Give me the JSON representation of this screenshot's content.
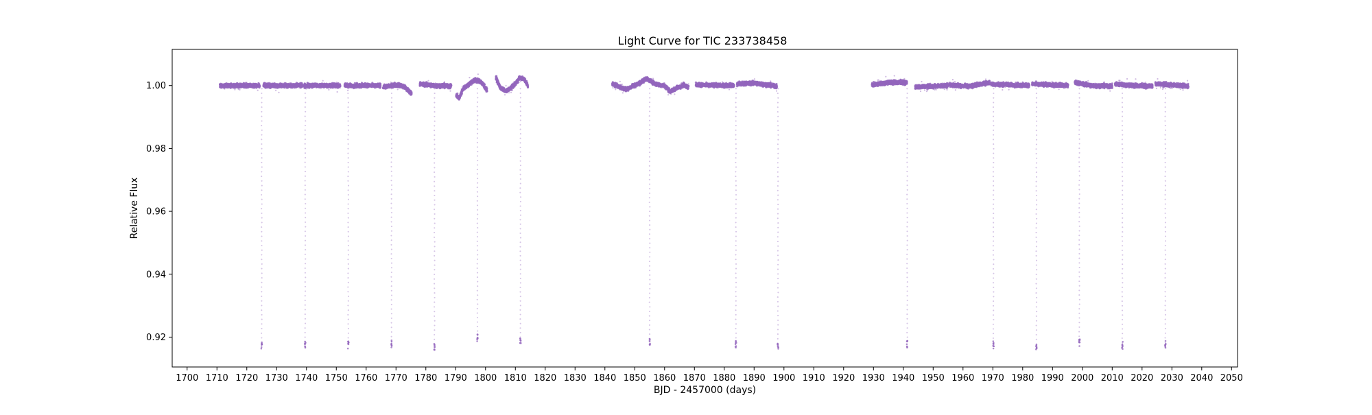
{
  "chart_data": {
    "type": "scatter",
    "title": "Light Curve for TIC 233738458",
    "xlabel": "BJD - 2457000 (days)",
    "ylabel": "Relative Flux",
    "xlim": [
      1695,
      2052
    ],
    "ylim": [
      0.9105,
      1.0115
    ],
    "xticks": [
      1700,
      1710,
      1720,
      1730,
      1740,
      1750,
      1760,
      1770,
      1780,
      1790,
      1800,
      1810,
      1820,
      1830,
      1840,
      1850,
      1860,
      1870,
      1880,
      1890,
      1900,
      1910,
      1920,
      1930,
      1940,
      1950,
      1960,
      1970,
      1980,
      1990,
      2000,
      2010,
      2020,
      2030,
      2040,
      2050
    ],
    "yticks": [
      0.92,
      0.94,
      0.96,
      0.98,
      1.0
    ],
    "ytick_labels": [
      "0.92",
      "0.94",
      "0.96",
      "0.98",
      "1.00"
    ],
    "grid": false,
    "color": "#9467bd",
    "marker_size": "small",
    "series": [
      {
        "segments": [
          {
            "x_start": 1711.0,
            "x_end": 1724.3,
            "baseline": [
              [
                1711.0,
                1.0
              ],
              [
                1724.3,
                1.0
              ]
            ]
          },
          {
            "x_start": 1725.6,
            "x_end": 1738.6,
            "baseline": [
              [
                1725.6,
                1.0
              ],
              [
                1738.6,
                1.0
              ]
            ]
          },
          {
            "x_start": 1739.2,
            "x_end": 1751.3,
            "baseline": [
              [
                1739.2,
                1.0
              ],
              [
                1751.3,
                1.0
              ]
            ]
          },
          {
            "x_start": 1752.8,
            "x_end": 1764.8,
            "baseline": [
              [
                1752.8,
                1.0
              ],
              [
                1764.8,
                1.0
              ]
            ]
          },
          {
            "x_start": 1765.7,
            "x_end": 1775.2,
            "baseline": [
              [
                1765.7,
                0.9995
              ],
              [
                1769.5,
                1.0002
              ],
              [
                1772.5,
                0.9998
              ],
              [
                1775.2,
                0.9975
              ]
            ]
          },
          {
            "x_start": 1778.0,
            "x_end": 1788.5,
            "baseline": [
              [
                1778.0,
                1.0005
              ],
              [
                1783.0,
                1.0
              ],
              [
                1788.5,
                0.9998
              ]
            ]
          },
          {
            "x_start": 1790.2,
            "x_end": 1800.5,
            "baseline": [
              [
                1790.2,
                0.997
              ],
              [
                1791.2,
                0.996
              ],
              [
                1792.5,
                0.999
              ],
              [
                1794.5,
                1.0005
              ],
              [
                1796.5,
                1.0018
              ],
              [
                1798.5,
                1.0012
              ],
              [
                1800.5,
                0.9985
              ]
            ]
          },
          {
            "x_start": 1803.5,
            "x_end": 1814.2,
            "baseline": [
              [
                1803.5,
                1.0025
              ],
              [
                1805.0,
                0.9992
              ],
              [
                1807.0,
                0.9982
              ],
              [
                1809.5,
                1.0
              ],
              [
                1811.5,
                1.0025
              ],
              [
                1813.0,
                1.002
              ],
              [
                1814.2,
                1.0
              ]
            ]
          },
          {
            "x_start": 1842.5,
            "x_end": 1857.0,
            "baseline": [
              [
                1842.5,
                1.0005
              ],
              [
                1847.0,
                0.9988
              ],
              [
                1851.0,
                1.0005
              ],
              [
                1854.0,
                1.0022
              ],
              [
                1857.0,
                1.0005
              ]
            ]
          },
          {
            "x_start": 1857.0,
            "x_end": 1868.0,
            "baseline": [
              [
                1857.0,
                1.0005
              ],
              [
                1860.0,
                1.0
              ],
              [
                1862.0,
                0.998
              ],
              [
                1864.5,
                0.9995
              ],
              [
                1866.5,
                1.0002
              ],
              [
                1868.0,
                0.9995
              ]
            ]
          },
          {
            "x_start": 1870.5,
            "x_end": 1883.3,
            "baseline": [
              [
                1870.5,
                1.0002
              ],
              [
                1883.3,
                1.0
              ]
            ]
          },
          {
            "x_start": 1884.3,
            "x_end": 1897.6,
            "baseline": [
              [
                1884.3,
                1.0005
              ],
              [
                1890.0,
                1.0008
              ],
              [
                1897.6,
                0.9998
              ]
            ]
          },
          {
            "x_start": 1929.5,
            "x_end": 1941.2,
            "baseline": [
              [
                1929.5,
                1.0002
              ],
              [
                1935.0,
                1.001
              ],
              [
                1941.2,
                1.001
              ]
            ]
          },
          {
            "x_start": 1944.0,
            "x_end": 1955.0,
            "baseline": [
              [
                1944.0,
                0.9995
              ],
              [
                1955.0,
                1.0
              ]
            ]
          },
          {
            "x_start": 1955.5,
            "x_end": 1969.0,
            "baseline": [
              [
                1955.5,
                1.0002
              ],
              [
                1962.0,
                0.9998
              ],
              [
                1969.0,
                1.001
              ]
            ]
          },
          {
            "x_start": 1969.5,
            "x_end": 1982.2,
            "baseline": [
              [
                1969.5,
                1.0005
              ],
              [
                1982.2,
                1.0
              ]
            ]
          },
          {
            "x_start": 1983.2,
            "x_end": 1995.2,
            "baseline": [
              [
                1983.2,
                1.0005
              ],
              [
                1995.2,
                1.0
              ]
            ]
          },
          {
            "x_start": 1997.5,
            "x_end": 2010.0,
            "baseline": [
              [
                1997.5,
                1.001
              ],
              [
                2003.0,
                1.0
              ],
              [
                2010.0,
                0.9998
              ]
            ]
          },
          {
            "x_start": 2011.0,
            "x_end": 2023.5,
            "baseline": [
              [
                2011.0,
                1.0005
              ],
              [
                2017.0,
                1.0
              ],
              [
                2023.5,
                0.9998
              ]
            ]
          },
          {
            "x_start": 2024.5,
            "x_end": 2035.5,
            "baseline": [
              [
                2024.5,
                1.0005
              ],
              [
                2030.0,
                1.0002
              ],
              [
                2035.5,
                0.9998
              ]
            ]
          }
        ],
        "transits": [
          {
            "x": 1725.0,
            "min": 0.9163
          },
          {
            "x": 1739.6,
            "min": 0.9165
          },
          {
            "x": 1754.0,
            "min": 0.9163
          },
          {
            "x": 1768.5,
            "min": 0.9167
          },
          {
            "x": 1782.9,
            "min": 0.9158
          },
          {
            "x": 1797.3,
            "min": 0.9185
          },
          {
            "x": 1811.7,
            "min": 0.918
          },
          {
            "x": 1855.0,
            "min": 0.9175
          },
          {
            "x": 1883.9,
            "min": 0.9163
          },
          {
            "x": 1898.0,
            "min": 0.916
          },
          {
            "x": 1941.3,
            "min": 0.9165
          },
          {
            "x": 1970.2,
            "min": 0.9162
          },
          {
            "x": 1984.6,
            "min": 0.9158
          },
          {
            "x": 1999.0,
            "min": 0.9168
          },
          {
            "x": 2013.4,
            "min": 0.9162
          },
          {
            "x": 2027.8,
            "min": 0.9163
          }
        ]
      }
    ]
  }
}
